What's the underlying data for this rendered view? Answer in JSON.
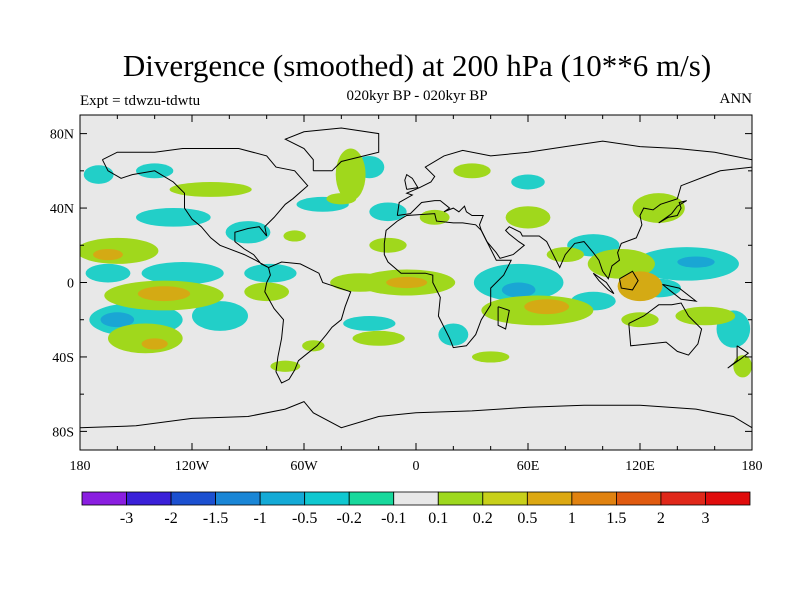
{
  "chart_data": {
    "type": "heatmap",
    "title": "Divergence (smoothed) at 200 hPa (10**6 m/s)",
    "subtitle": "020kyr BP - 020kyr BP",
    "left_label": "Expt = tdwzu-tdwtu",
    "right_label": "ANN",
    "x_ticks": [
      "180",
      "120W",
      "60W",
      "0",
      "60E",
      "120E",
      "180"
    ],
    "x_tick_values": [
      -180,
      -120,
      -60,
      0,
      60,
      120,
      180
    ],
    "y_ticks": [
      "80N",
      "40N",
      "0",
      "40S",
      "80S"
    ],
    "y_tick_values": [
      80,
      40,
      0,
      -40,
      -80
    ],
    "xlim": [
      -180,
      180
    ],
    "ylim": [
      -90,
      90
    ],
    "colorbar": {
      "labels": [
        "-3",
        "-2",
        "-1.5",
        "-1",
        "-0.5",
        "-0.2",
        "-0.1",
        "0.1",
        "0.2",
        "0.5",
        "1",
        "1.5",
        "2",
        "3"
      ],
      "colors": [
        "#8a1ee0",
        "#3a20d8",
        "#1c50d0",
        "#1a86d6",
        "#14aad6",
        "#10c8d0",
        "#18d89c",
        "#e8e8e8",
        "#9ed81e",
        "#c8d01a",
        "#dca812",
        "#e08210",
        "#e05a10",
        "#e0281a",
        "#e00c0c"
      ]
    },
    "regions": [
      {
        "level": "-0.2",
        "lon": -125,
        "lat": 5,
        "rx": 22,
        "ry": 6
      },
      {
        "level": "-0.2",
        "lon": -165,
        "lat": 5,
        "rx": 12,
        "ry": 5
      },
      {
        "level": "-0.2",
        "lon": -78,
        "lat": 5,
        "rx": 14,
        "ry": 5
      },
      {
        "level": "-0.2",
        "lon": -150,
        "lat": -20,
        "rx": 25,
        "ry": 9
      },
      {
        "level": "-0.5",
        "lon": -160,
        "lat": -20,
        "rx": 9,
        "ry": 4
      },
      {
        "level": "-0.2",
        "lon": -105,
        "lat": -18,
        "rx": 15,
        "ry": 8
      },
      {
        "level": "-0.2",
        "lon": -90,
        "lat": 27,
        "rx": 12,
        "ry": 6
      },
      {
        "level": "-0.2",
        "lon": -130,
        "lat": 35,
        "rx": 20,
        "ry": 5
      },
      {
        "level": "-0.2",
        "lon": -50,
        "lat": 42,
        "rx": 14,
        "ry": 4
      },
      {
        "level": "-0.2",
        "lon": -25,
        "lat": -22,
        "rx": 14,
        "ry": 4
      },
      {
        "level": "-0.2",
        "lon": -15,
        "lat": 38,
        "rx": 10,
        "ry": 5
      },
      {
        "level": "-0.2",
        "lon": 20,
        "lat": -28,
        "rx": 8,
        "ry": 6
      },
      {
        "level": "-0.2",
        "lon": 55,
        "lat": 0,
        "rx": 24,
        "ry": 10
      },
      {
        "level": "-0.5",
        "lon": 55,
        "lat": -4,
        "rx": 9,
        "ry": 4
      },
      {
        "level": "-0.2",
        "lon": 95,
        "lat": 20,
        "rx": 14,
        "ry": 6
      },
      {
        "level": "-0.2",
        "lon": 130,
        "lat": -3,
        "rx": 12,
        "ry": 5
      },
      {
        "level": "-0.2",
        "lon": 145,
        "lat": 10,
        "rx": 28,
        "ry": 9
      },
      {
        "level": "-0.5",
        "lon": 150,
        "lat": 11,
        "rx": 10,
        "ry": 3
      },
      {
        "level": "-0.2",
        "lon": 170,
        "lat": -25,
        "rx": 9,
        "ry": 10
      },
      {
        "level": "-0.2",
        "lon": -170,
        "lat": 58,
        "rx": 8,
        "ry": 5
      },
      {
        "level": "-0.2",
        "lon": -140,
        "lat": 60,
        "rx": 10,
        "ry": 4
      },
      {
        "level": "-0.2",
        "lon": -25,
        "lat": 62,
        "rx": 8,
        "ry": 6
      },
      {
        "level": "-0.2",
        "lon": 60,
        "lat": 54,
        "rx": 9,
        "ry": 4
      },
      {
        "level": "-0.2",
        "lon": 95,
        "lat": -10,
        "rx": 12,
        "ry": 5
      },
      {
        "level": "0.2",
        "lon": -160,
        "lat": 17,
        "rx": 22,
        "ry": 7
      },
      {
        "level": "0.5",
        "lon": -165,
        "lat": 15,
        "rx": 8,
        "ry": 3
      },
      {
        "level": "0.2",
        "lon": -135,
        "lat": -7,
        "rx": 32,
        "ry": 8
      },
      {
        "level": "0.5",
        "lon": -135,
        "lat": -6,
        "rx": 14,
        "ry": 4
      },
      {
        "level": "0.2",
        "lon": -145,
        "lat": -30,
        "rx": 20,
        "ry": 8
      },
      {
        "level": "0.5",
        "lon": -140,
        "lat": -33,
        "rx": 7,
        "ry": 3
      },
      {
        "level": "0.2",
        "lon": -80,
        "lat": -5,
        "rx": 12,
        "ry": 5
      },
      {
        "level": "0.2",
        "lon": -30,
        "lat": 0,
        "rx": 16,
        "ry": 5
      },
      {
        "level": "0.2",
        "lon": -5,
        "lat": 0,
        "rx": 26,
        "ry": 7
      },
      {
        "level": "0.5",
        "lon": -5,
        "lat": 0,
        "rx": 11,
        "ry": 3
      },
      {
        "level": "0.2",
        "lon": -110,
        "lat": 50,
        "rx": 22,
        "ry": 4
      },
      {
        "level": "0.2",
        "lon": -40,
        "lat": 45,
        "rx": 8,
        "ry": 3
      },
      {
        "level": "0.2",
        "lon": -35,
        "lat": 58,
        "rx": 8,
        "ry": 14
      },
      {
        "level": "0.2",
        "lon": -15,
        "lat": 20,
        "rx": 10,
        "ry": 4
      },
      {
        "level": "0.2",
        "lon": -20,
        "lat": -30,
        "rx": 14,
        "ry": 4
      },
      {
        "level": "0.2",
        "lon": 30,
        "lat": 60,
        "rx": 10,
        "ry": 4
      },
      {
        "level": "0.2",
        "lon": 10,
        "lat": 35,
        "rx": 8,
        "ry": 4
      },
      {
        "level": "0.2",
        "lon": 60,
        "lat": 35,
        "rx": 12,
        "ry": 6
      },
      {
        "level": "0.2",
        "lon": 65,
        "lat": -15,
        "rx": 30,
        "ry": 8
      },
      {
        "level": "0.5",
        "lon": 70,
        "lat": -13,
        "rx": 12,
        "ry": 4
      },
      {
        "level": "0.2",
        "lon": 80,
        "lat": 15,
        "rx": 10,
        "ry": 4
      },
      {
        "level": "0.2",
        "lon": 110,
        "lat": 10,
        "rx": 18,
        "ry": 8
      },
      {
        "level": "0.2",
        "lon": 120,
        "lat": -20,
        "rx": 10,
        "ry": 4
      },
      {
        "level": "0.2",
        "lon": 130,
        "lat": 40,
        "rx": 14,
        "ry": 8
      },
      {
        "level": "0.5",
        "lon": 120,
        "lat": -2,
        "rx": 12,
        "ry": 8
      },
      {
        "level": "0.2",
        "lon": 155,
        "lat": -18,
        "rx": 16,
        "ry": 5
      },
      {
        "level": "0.2",
        "lon": 175,
        "lat": -45,
        "rx": 5,
        "ry": 6
      },
      {
        "level": "0.2",
        "lon": -70,
        "lat": -45,
        "rx": 8,
        "ry": 3
      },
      {
        "level": "0.2",
        "lon": -65,
        "lat": 25,
        "rx": 6,
        "ry": 3
      },
      {
        "level": "0.2",
        "lon": 40,
        "lat": -40,
        "rx": 10,
        "ry": 3
      },
      {
        "level": "0.2",
        "lon": -55,
        "lat": -34,
        "rx": 6,
        "ry": 3
      }
    ]
  }
}
